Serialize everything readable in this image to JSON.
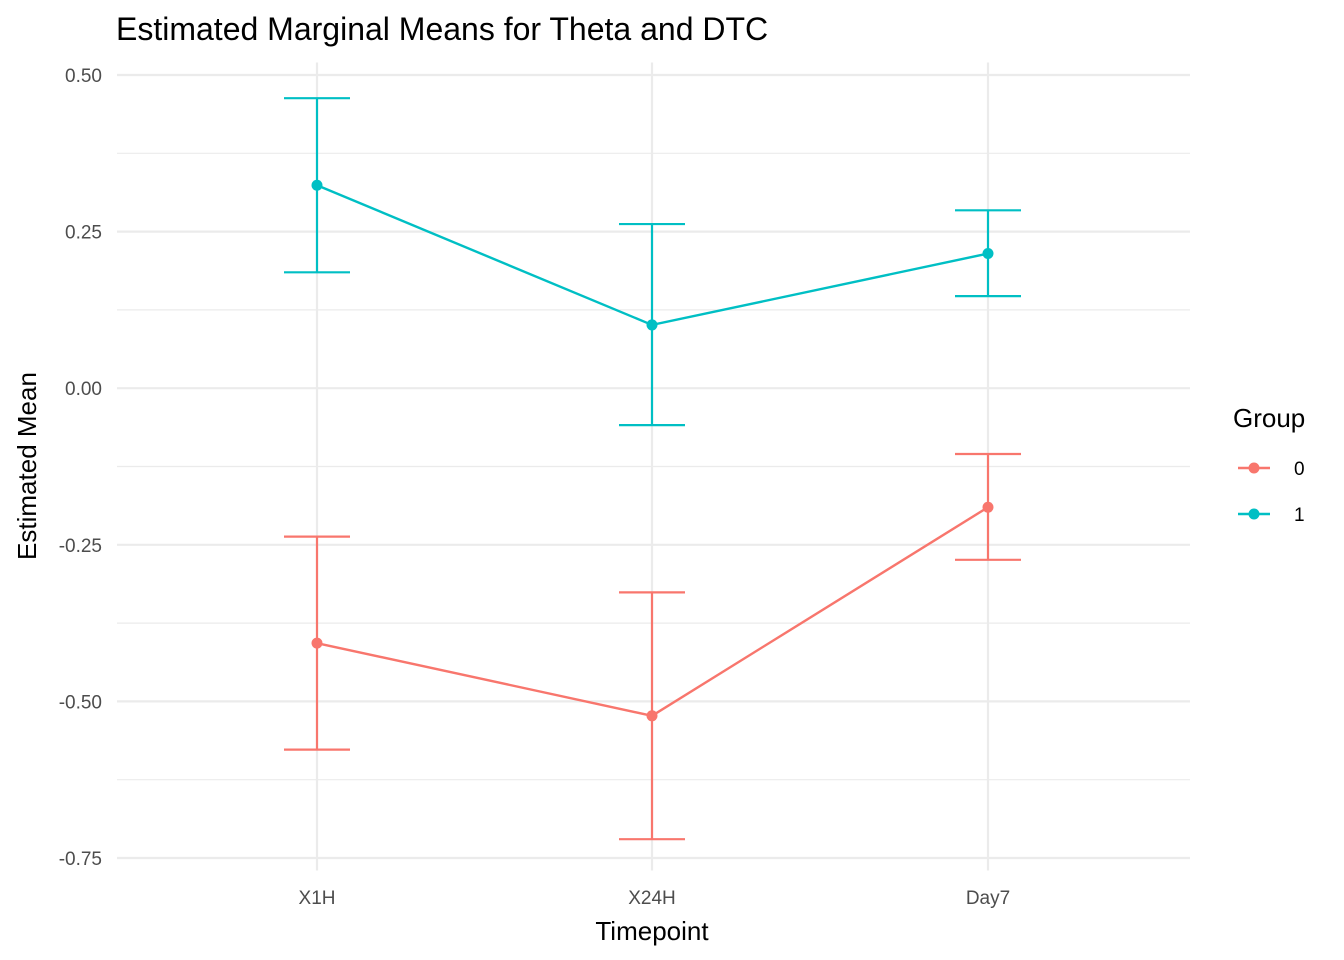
{
  "chart_data": {
    "type": "line",
    "title": "Estimated Marginal Means for Theta and DTC",
    "xlabel": "Timepoint",
    "ylabel": "Estimated Mean",
    "categories": [
      "X1H",
      "X24H",
      "Day7"
    ],
    "ylim": [
      -0.77,
      0.52
    ],
    "y_ticks": [
      -0.75,
      -0.5,
      -0.25,
      0.0,
      0.25,
      0.5
    ],
    "y_tick_labels": [
      "-0.75",
      "-0.50",
      "-0.25",
      "0.00",
      "0.25",
      "0.50"
    ],
    "grid": true,
    "legend": {
      "title": "Group",
      "position": "right"
    },
    "series": [
      {
        "name": "0",
        "color": "#F8766D",
        "values": [
          -0.407,
          -0.523,
          -0.19
        ],
        "lower": [
          -0.577,
          -0.72,
          -0.274
        ],
        "upper": [
          -0.237,
          -0.326,
          -0.105
        ]
      },
      {
        "name": "1",
        "color": "#00BFC4",
        "values": [
          0.324,
          0.101,
          0.215
        ],
        "lower": [
          0.185,
          -0.059,
          0.147
        ],
        "upper": [
          0.463,
          0.262,
          0.284
        ]
      }
    ]
  }
}
